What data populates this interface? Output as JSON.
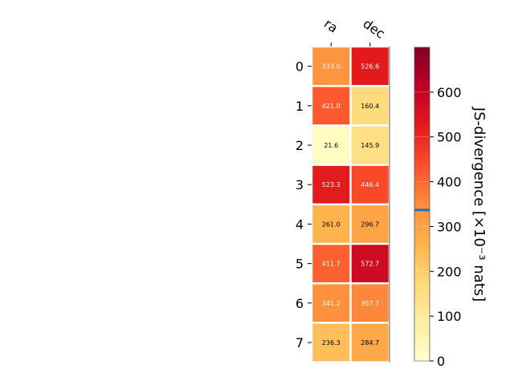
{
  "chart_data": {
    "type": "heatmap",
    "x_categories": [
      "ra",
      "dec"
    ],
    "y_categories": [
      "0",
      "1",
      "2",
      "3",
      "4",
      "5",
      "6",
      "7"
    ],
    "values": [
      [
        333.0,
        526.6
      ],
      [
        421.0,
        160.4
      ],
      [
        21.6,
        145.9
      ],
      [
        523.3,
        446.4
      ],
      [
        261.0,
        296.7
      ],
      [
        411.7,
        572.7
      ],
      [
        341.2,
        357.7
      ],
      [
        236.3,
        284.7
      ]
    ],
    "cell_labels": [
      [
        "333.0",
        "526.6"
      ],
      [
        "421.0",
        "160.4"
      ],
      [
        "21.6",
        "145.9"
      ],
      [
        "523.3",
        "446.4"
      ],
      [
        "261.0",
        "296.7"
      ],
      [
        "411.7",
        "572.7"
      ],
      [
        "341.2",
        "357.7"
      ],
      [
        "236.3",
        "284.7"
      ]
    ],
    "colorbar": {
      "label": "JS-divergence [×10⁻³ nats]",
      "range": [
        0,
        700
      ],
      "ticks": [
        0,
        100,
        200,
        300,
        400,
        500,
        600
      ],
      "tick_labels": [
        "0",
        "100",
        "200",
        "300",
        "400",
        "500",
        "600"
      ],
      "marker_value": 337,
      "marker_color": "#1f77b4",
      "colormap": "YlOrRd"
    }
  }
}
